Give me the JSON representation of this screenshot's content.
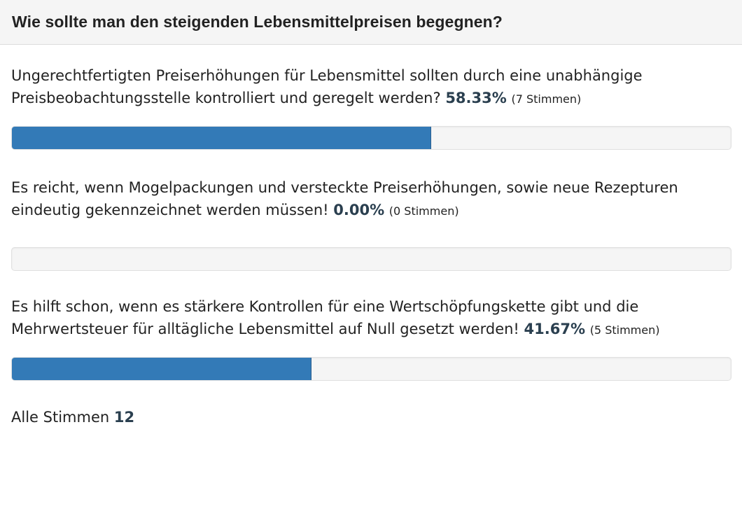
{
  "poll": {
    "title": "Wie sollte man den steigenden Lebensmittelpreisen begegnen?",
    "options": [
      {
        "text": "Ungerechtfertigten Preiserhöhungen für Lebensmittel sollten durch eine unabhängige Preisbeobachtungsstelle kontrolliert und geregelt werden?",
        "percent_label": "58.33%",
        "votes_label": "(7 Stimmen)",
        "fraction": 0.5833
      },
      {
        "text": "Es reicht, wenn Mogelpackungen und versteckte Preiserhöhungen, sowie neue Rezepturen eindeutig gekennzeichnet werden müssen!",
        "percent_label": "0.00%",
        "votes_label": "(0 Stimmen)",
        "fraction": 0.0
      },
      {
        "text": "Es hilft schon, wenn es stärkere Kontrollen für eine Wertschöpfungskette gibt und die Mehrwertsteuer für alltägliche Lebensmittel auf Null gesetzt werden!",
        "percent_label": "41.67%",
        "votes_label": "(5 Stimmen)",
        "fraction": 0.4167
      }
    ],
    "total_label": "Alle Stimmen",
    "total_votes": "12"
  },
  "colors": {
    "bar_fill": "#337ab7",
    "bar_track": "#f5f5f5",
    "header_bg": "#f5f5f5"
  }
}
